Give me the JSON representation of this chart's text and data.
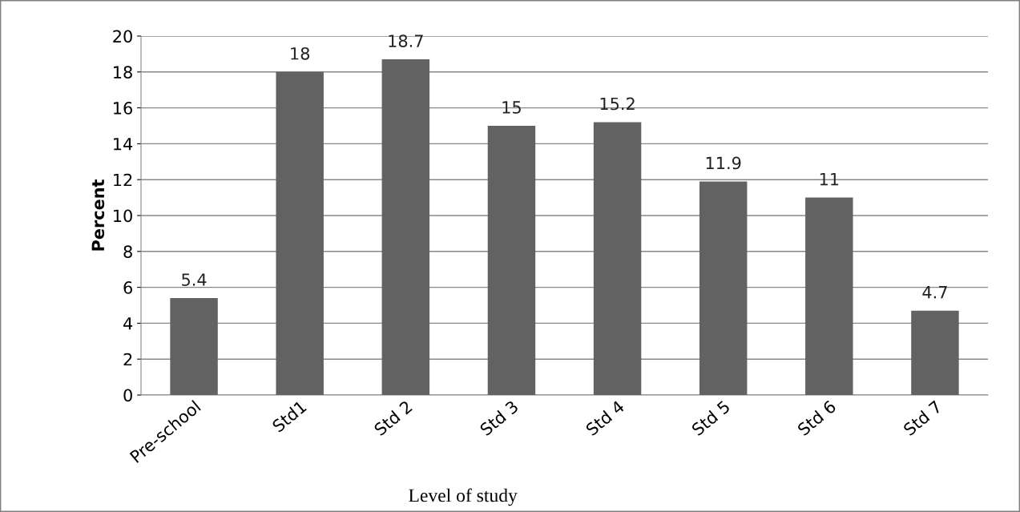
{
  "chart_data": {
    "type": "bar",
    "xlabel": "Level of study",
    "ylabel": "Percent",
    "categories": [
      "Pre-school",
      "Std1",
      "Std 2",
      "Std 3",
      "Std 4",
      "Std 5",
      "Std 6",
      "Std 7"
    ],
    "values": [
      5.4,
      18,
      18.7,
      15,
      15.2,
      11.9,
      11,
      4.7
    ],
    "color": "#626262",
    "ylim": [
      0,
      20
    ],
    "yticks": [
      0,
      2,
      4,
      6,
      8,
      10,
      12,
      14,
      16,
      18,
      20
    ],
    "grid": "y",
    "data_labels": true
  }
}
